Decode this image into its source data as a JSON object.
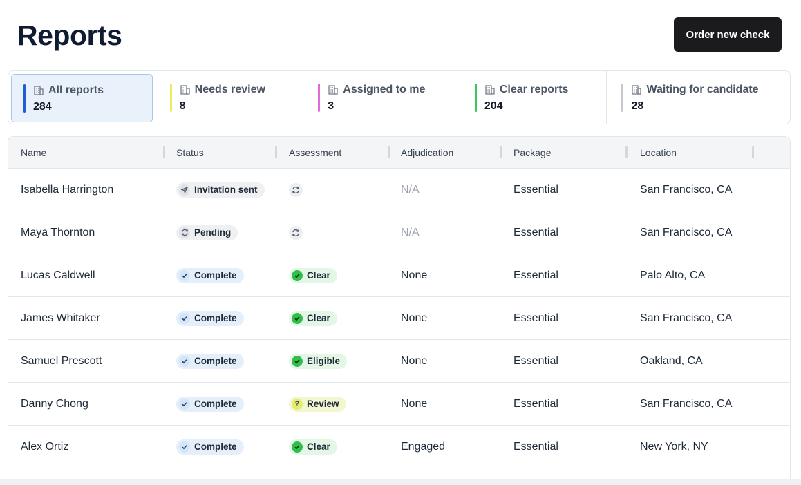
{
  "header": {
    "title": "Reports",
    "order_button_label": "Order new check"
  },
  "tabs": [
    {
      "label": "All reports",
      "count": "284",
      "color": "#1f5fd1",
      "active": true
    },
    {
      "label": "Needs review",
      "count": "8",
      "color": "#ecec55"
    },
    {
      "label": "Assigned to me",
      "count": "3",
      "color": "#e06ad6"
    },
    {
      "label": "Clear reports",
      "count": "204",
      "color": "#3bc55a"
    },
    {
      "label": "Waiting for candidate",
      "count": "28",
      "color": "#c4c9cf"
    }
  ],
  "table": {
    "columns": [
      "Name",
      "Status",
      "Assessment",
      "Adjudication",
      "Package",
      "Location"
    ],
    "rows": [
      {
        "name": "Isabella Harrington",
        "status": "Invitation sent",
        "status_icon": "send-icon",
        "assessment": "",
        "assessment_icon": "sync-icon",
        "adjudication": "N/A",
        "package": "Essential",
        "location": "San Francisco, CA"
      },
      {
        "name": "Maya Thornton",
        "status": "Pending",
        "status_icon": "sync-icon",
        "assessment": "",
        "assessment_icon": "sync-icon",
        "adjudication": "N/A",
        "package": "Essential",
        "location": "San Francisco, CA"
      },
      {
        "name": "Lucas Caldwell",
        "status": "Complete",
        "status_icon": "check-icon",
        "assessment": "Clear",
        "assessment_icon": "check-circle-icon",
        "adjudication": "None",
        "package": "Essential",
        "location": "Palo Alto, CA"
      },
      {
        "name": "James Whitaker",
        "status": "Complete",
        "status_icon": "check-icon",
        "assessment": "Clear",
        "assessment_icon": "check-circle-icon",
        "adjudication": "None",
        "package": "Essential",
        "location": "San Francisco, CA"
      },
      {
        "name": "Samuel Prescott",
        "status": "Complete",
        "status_icon": "check-icon",
        "assessment": "Eligible",
        "assessment_icon": "check-circle-icon",
        "adjudication": "None",
        "package": "Essential",
        "location": "Oakland, CA"
      },
      {
        "name": "Danny Chong",
        "status": "Complete",
        "status_icon": "check-icon",
        "assessment": "Review",
        "assessment_icon": "question-icon",
        "adjudication": "None",
        "package": "Essential",
        "location": "San Francisco, CA"
      },
      {
        "name": "Alex Ortiz",
        "status": "Complete",
        "status_icon": "check-icon",
        "assessment": "Clear",
        "assessment_icon": "check-circle-icon",
        "adjudication": "Engaged",
        "package": "Essential",
        "location": "New York, NY"
      }
    ]
  },
  "icons": {
    "question_glyph": "?"
  }
}
